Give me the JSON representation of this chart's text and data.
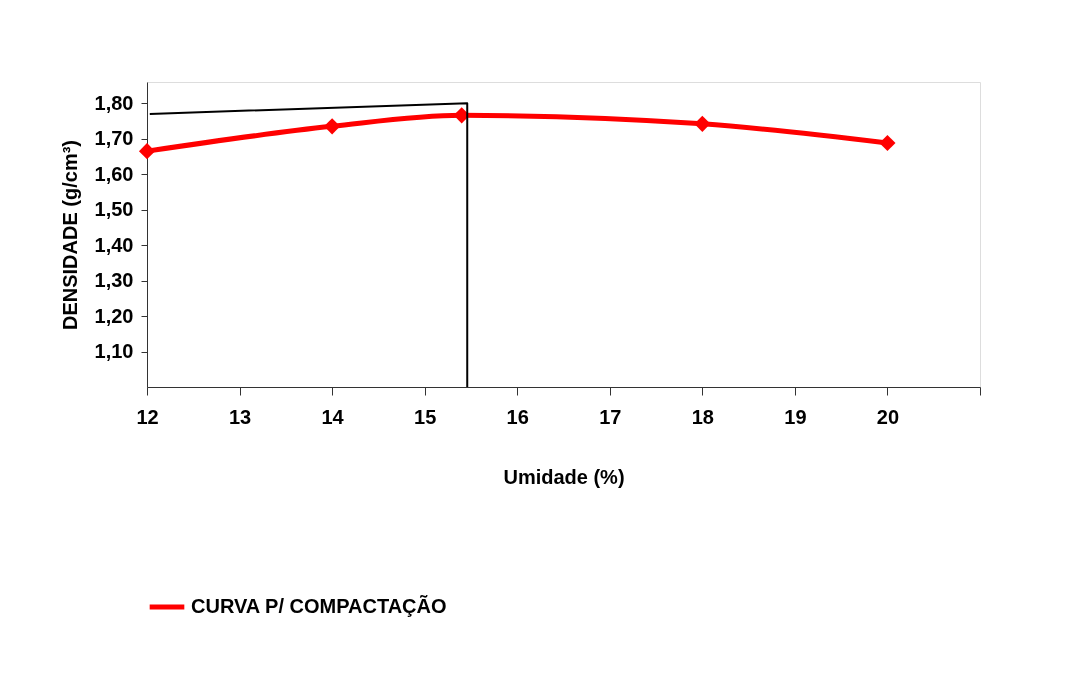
{
  "chart_data": {
    "type": "line",
    "xlabel": "Umidade (%)",
    "ylabel": "DENSIDADE (g/cm³)",
    "xlim": [
      12,
      21
    ],
    "xticks": [
      12,
      13,
      14,
      15,
      16,
      17,
      18,
      19,
      20,
      {
        "value": 21,
        "label": null
      }
    ],
    "ylim": [
      1.0,
      1.86
    ],
    "yticks": [
      {
        "value": 1.1,
        "label": "1,10"
      },
      {
        "value": 1.2,
        "label": "1,20"
      },
      {
        "value": 1.3,
        "label": "1,30"
      },
      {
        "value": 1.4,
        "label": "1,40"
      },
      {
        "value": 1.5,
        "label": "1,50"
      },
      {
        "value": 1.6,
        "label": "1,60"
      },
      {
        "value": 1.7,
        "label": "1,70"
      },
      {
        "value": 1.8,
        "label": "1,80"
      }
    ],
    "grid": false,
    "legend": "bottom",
    "line_style": "solid",
    "series": [
      {
        "name": "CURVA P/ COMPACTAÇÃO",
        "color": "#ff0000",
        "marker": "diamond",
        "x": [
          12,
          14,
          15.4,
          18,
          20
        ],
        "values": [
          1.665,
          1.735,
          1.766,
          1.742,
          1.688
        ]
      },
      {
        "color": "#000000",
        "marker": "none",
        "x": [
          12.03,
          15.46,
          15.46
        ],
        "values": [
          1.77,
          1.8,
          1.0
        ]
      }
    ]
  }
}
